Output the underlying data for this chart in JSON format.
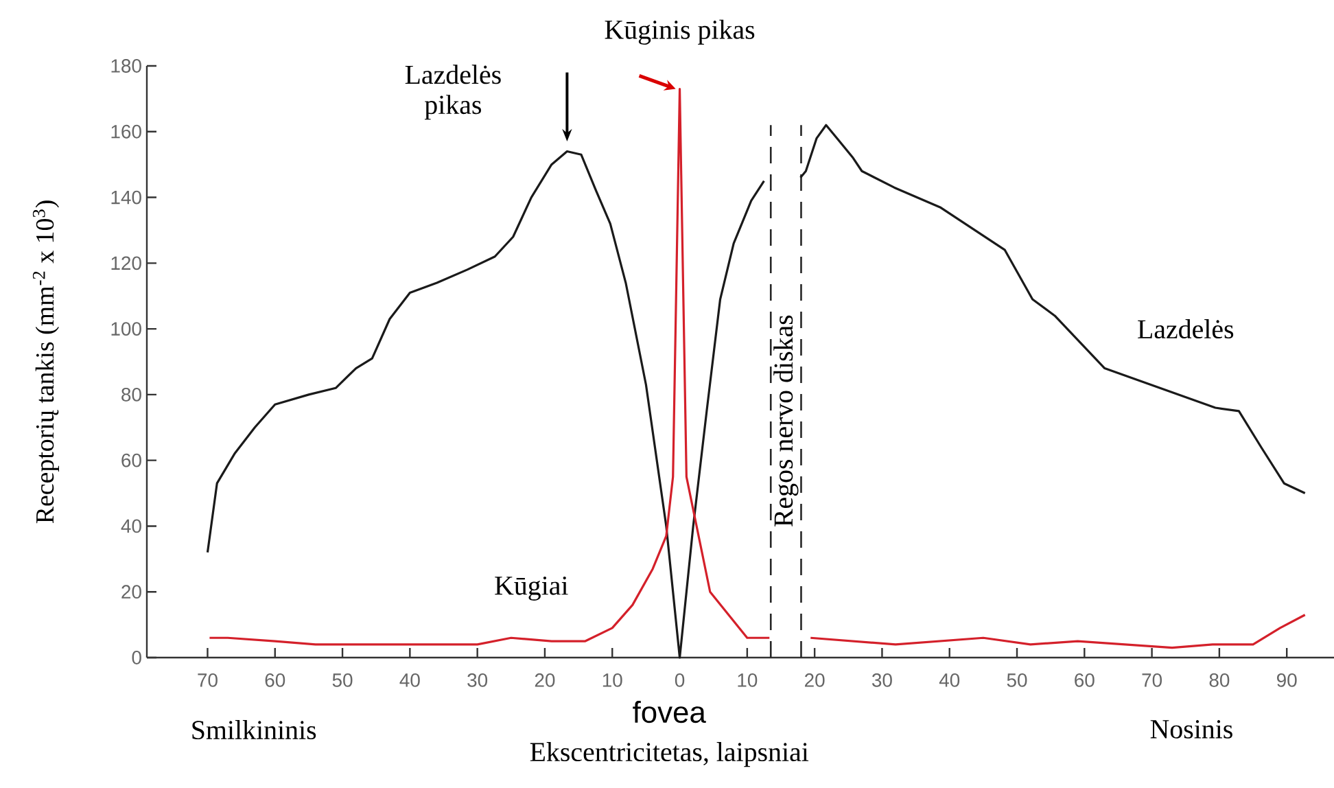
{
  "chart_data": {
    "type": "line",
    "xlabel": "Ekscentricitetas, laipsniai",
    "ylabel": "Receptorių tankis (mm$^{-2}$ x 10$^{3}$)",
    "xlim": [
      -79,
      97
    ],
    "ylim": [
      0,
      180
    ],
    "xticks": [
      {
        "value": -70,
        "label": "70"
      },
      {
        "value": -60,
        "label": "60"
      },
      {
        "value": -50,
        "label": "50"
      },
      {
        "value": -40,
        "label": "40"
      },
      {
        "value": -30,
        "label": "30"
      },
      {
        "value": -20,
        "label": "20"
      },
      {
        "value": -10,
        "label": "10"
      },
      0,
      10,
      20,
      30,
      40,
      50,
      60,
      70,
      80,
      90
    ],
    "yticks": [
      0,
      20,
      40,
      60,
      80,
      100,
      120,
      140,
      160,
      180
    ],
    "marker": "none",
    "line_style": "solid",
    "series": [
      {
        "name": "Lazdelės",
        "color": "#1a1a1a",
        "x": [
          -70,
          -68.6,
          -66,
          -63,
          -60,
          -55,
          -51,
          -48,
          -45.6,
          -43,
          -40,
          -36,
          -31.5,
          -27.4,
          -24.7,
          -22,
          -19,
          -16.7,
          -14.6,
          -12.4,
          -10.3,
          -8,
          -5,
          -2,
          0,
          2,
          4,
          6,
          8,
          10.6,
          12.5,
          15,
          17.9,
          18.7,
          20.3,
          21.7,
          23.3,
          25.7,
          27,
          31.8,
          38.6,
          48.2,
          52.3,
          55.6,
          63,
          79.4,
          82.9,
          86.2,
          89.6,
          92.7
        ],
        "values": [
          32,
          53,
          62,
          70,
          77,
          80,
          82,
          88,
          91,
          103,
          111,
          114,
          118,
          122,
          128,
          140,
          150,
          154,
          153,
          142,
          132,
          114,
          83,
          40,
          0,
          40,
          75,
          109,
          126,
          139,
          145,
          null,
          146,
          148,
          158,
          162,
          158,
          152,
          148,
          143,
          137,
          124,
          109,
          104,
          88,
          76,
          75,
          64,
          53,
          50
        ]
      },
      {
        "name": "Kūgiai",
        "color": "#d4202a",
        "x": [
          -69.7,
          -67,
          -60,
          -54,
          -40,
          -30,
          -25,
          -19,
          -14,
          -10,
          -7,
          -4,
          -2,
          -1,
          0,
          1,
          4.5,
          10,
          13.3,
          15,
          19.4,
          32,
          45,
          52,
          59,
          73,
          79,
          85,
          89,
          92.7
        ],
        "values": [
          6,
          6,
          5,
          4,
          4,
          4,
          6,
          5,
          5,
          9,
          16,
          27,
          37,
          55,
          173,
          55,
          20,
          6,
          6,
          null,
          6,
          4,
          6,
          4,
          5,
          3,
          4,
          4,
          9,
          13
        ]
      }
    ],
    "ref_lines": [
      {
        "axis": "x",
        "value": 13.5,
        "label": "Regos nervo diskas",
        "line_style": "dashed"
      },
      {
        "axis": "x",
        "value": 18,
        "line_style": "dashed"
      }
    ],
    "annotations": [
      {
        "text": "Lazdelės pikas",
        "x": -16.7,
        "y": 154
      },
      {
        "text": "Kūginis pikas",
        "x": 0,
        "y": 173
      },
      "fovea",
      "Smilkininis",
      "Nosinis"
    ]
  }
}
